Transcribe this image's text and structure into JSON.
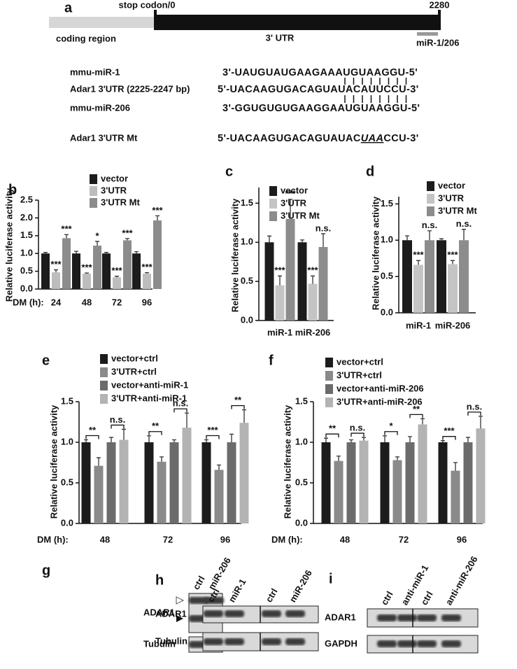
{
  "panel_a": {
    "label": "a",
    "stop_codon": "stop codon/0",
    "end": 2280,
    "coding_region": "coding region",
    "utr": "3' UTR",
    "site": "miR-1/206",
    "alignment": [
      {
        "name": "mmu-miR-1",
        "sequence": [
          "3'-UAUGUAUGAAGAAAUGUAAGGU-5'"
        ]
      },
      {
        "name": "Adar1 3'UTR (2225-2247 bp)",
        "sequence": [
          "5'-UACAAGUGACAGUAUACAUUCCU-3'"
        ]
      },
      {
        "name": "mmu-miR-206",
        "sequence": [
          "3'-GGUGUGUGAAGGAAUGUAAGGU-5'"
        ]
      },
      {
        "name": "Adar1 3'UTR Mt",
        "sequence": [
          "5'-UACAAGUGACAGUAUAC",
          "UAA",
          "CCU-3'"
        ]
      }
    ]
  },
  "chart_data": [
    {
      "type": "bar",
      "panel": "b",
      "ylabel": "Relative luciferase activity",
      "xlabel": "DM (h):",
      "categories": [
        "24",
        "48",
        "72",
        "96"
      ],
      "ylim": [
        0,
        2.5
      ],
      "yticks": [
        {
          "value": 0,
          "label": "0.0"
        },
        0.5,
        {
          "value": 1,
          "label": "1.0"
        },
        1.5,
        {
          "value": 2,
          "label": "2.0"
        },
        2.5
      ],
      "series": [
        {
          "name": "vector",
          "color": "#1c1c1c",
          "values": [
            1.0,
            1.0,
            1.0,
            1.0
          ],
          "errors": [
            0.03,
            0.06,
            0.03,
            0.05
          ]
        },
        {
          "name": "3'UTR",
          "color": "#bdbdbd",
          "values": [
            0.47,
            0.43,
            0.33,
            0.43
          ],
          "errors": [
            0.07,
            0.02,
            0.03,
            0.03
          ],
          "sig": [
            "***",
            "***",
            "***",
            "***"
          ]
        },
        {
          "name": "3'UTR Mt",
          "color": "#8c8c8c",
          "values": [
            1.43,
            1.22,
            1.37,
            1.93
          ],
          "errors": [
            0.1,
            0.12,
            0.05,
            0.13
          ],
          "sig": [
            "***",
            "*",
            "***",
            "***"
          ]
        }
      ]
    },
    {
      "type": "bar",
      "panel": "c",
      "ylabel": "Relative luciferase activity",
      "categories": [
        "miR-1",
        "miR-206"
      ],
      "ylim": [
        0,
        1.7
      ],
      "yticks": [
        {
          "value": 0,
          "label": "0.0"
        },
        0.5,
        {
          "value": 1,
          "label": "1.0"
        },
        1.5
      ],
      "series": [
        {
          "name": "vector",
          "color": "#1c1c1c",
          "values": [
            1.0,
            1.0
          ],
          "errors": [
            0.08,
            0.03
          ]
        },
        {
          "name": "3'UTR",
          "color": "#c4c4c4",
          "values": [
            0.45,
            0.47
          ],
          "errors": [
            0.12,
            0.1
          ],
          "sig": [
            "***",
            "***"
          ]
        },
        {
          "name": "3'UTR Mt",
          "color": "#8c8c8c",
          "values": [
            1.3,
            0.94
          ],
          "errors": [
            0.25,
            0.17
          ],
          "sig": [
            "***",
            "n.s."
          ]
        }
      ]
    },
    {
      "type": "bar",
      "panel": "d",
      "ylabel": "Relative luciferase activity",
      "categories": [
        "miR-1",
        "miR-206"
      ],
      "ylim": [
        0,
        1.6
      ],
      "yticks": [
        {
          "value": 0,
          "label": "0.0"
        },
        0.5,
        {
          "value": 1,
          "label": "1.0"
        },
        1.5
      ],
      "series": [
        {
          "name": "vector",
          "color": "#1c1c1c",
          "values": [
            1.0,
            1.0
          ],
          "errors": [
            0.06,
            0.02
          ]
        },
        {
          "name": "3'UTR",
          "color": "#c4c4c4",
          "values": [
            0.66,
            0.67
          ],
          "errors": [
            0.06,
            0.05
          ],
          "sig": [
            "***",
            "***"
          ]
        },
        {
          "name": "3'UTR Mt",
          "color": "#8c8c8c",
          "values": [
            1.0,
            1.0
          ],
          "errors": [
            0.13,
            0.15
          ],
          "sig": [
            "n.s.",
            "n.s."
          ]
        }
      ]
    },
    {
      "type": "bar",
      "panel": "e",
      "ylabel": "Relative luciferase activity",
      "xlabel": "DM (h):",
      "categories": [
        "48",
        "72",
        "96"
      ],
      "ylim": [
        0,
        1.5
      ],
      "yticks": [
        {
          "value": 0,
          "label": "0.0"
        },
        0.5,
        {
          "value": 1,
          "label": "1.0"
        },
        1.5
      ],
      "series": [
        {
          "name": "vector+ctrl",
          "color": "#1c1c1c",
          "values": [
            1.0,
            1.0,
            1.0
          ],
          "errors": [
            0.03,
            0.08,
            0.03
          ]
        },
        {
          "name": "3'UTR+ctrl",
          "color": "#8a8a8a",
          "values": [
            0.71,
            0.76,
            0.66
          ],
          "errors": [
            0.1,
            0.06,
            0.06
          ]
        },
        {
          "name": "vector+anti-miR-1",
          "color": "#6b6b6b",
          "values": [
            1.0,
            1.0,
            1.0
          ],
          "errors": [
            0.06,
            0.03,
            0.1
          ]
        },
        {
          "name": "3'UTR+anti-miR-1",
          "color": "#b3b3b3",
          "values": [
            1.03,
            1.18,
            1.24
          ],
          "errors": [
            0.13,
            0.18,
            0.16
          ]
        }
      ],
      "brackets": [
        [
          "**",
          "**",
          "***"
        ],
        [
          "n.s.",
          "n.s.",
          "**"
        ]
      ]
    },
    {
      "type": "bar",
      "panel": "f",
      "ylabel": "Relative luciferase activity",
      "xlabel": "DM (h):",
      "categories": [
        "48",
        "72",
        "96"
      ],
      "ylim": [
        0,
        1.5
      ],
      "yticks": [
        {
          "value": 0,
          "label": "0.0"
        },
        0.5,
        {
          "value": 1,
          "label": "1.0"
        },
        1.5
      ],
      "series": [
        {
          "name": "vector+ctrl",
          "color": "#1c1c1c",
          "values": [
            1.0,
            1.0,
            1.0
          ],
          "errors": [
            0.05,
            0.08,
            0.02
          ]
        },
        {
          "name": "3'UTR+ctrl",
          "color": "#8a8a8a",
          "values": [
            0.77,
            0.78,
            0.65
          ],
          "errors": [
            0.06,
            0.04,
            0.1
          ]
        },
        {
          "name": "vector+anti-miR-206",
          "color": "#6b6b6b",
          "values": [
            1.0,
            1.0,
            1.0
          ],
          "errors": [
            0.03,
            0.07,
            0.06
          ]
        },
        {
          "name": "3'UTR+anti-miR-206",
          "color": "#b3b3b3",
          "values": [
            1.02,
            1.22,
            1.17
          ],
          "errors": [
            0.04,
            0.07,
            0.15
          ]
        }
      ],
      "brackets": [
        [
          "**",
          "*",
          "***"
        ],
        [
          "n.s.",
          "**",
          "n.s."
        ]
      ]
    }
  ],
  "blots": [
    {
      "panel": "g",
      "lanes": [
        "ctrl",
        "miR-206"
      ],
      "rows": [
        "ADAR1",
        "Tubulin"
      ]
    },
    {
      "panel": "h",
      "lanes": [
        "ctrl",
        "miR-1",
        "ctrl",
        "miR-206"
      ],
      "rows": [
        "ADAR1",
        "Tubulin"
      ]
    },
    {
      "panel": "i",
      "lanes": [
        "ctrl",
        "anti-miR-1",
        "ctrl",
        "anti-miR-206"
      ],
      "rows": [
        "ADAR1",
        "GAPDH"
      ]
    }
  ]
}
